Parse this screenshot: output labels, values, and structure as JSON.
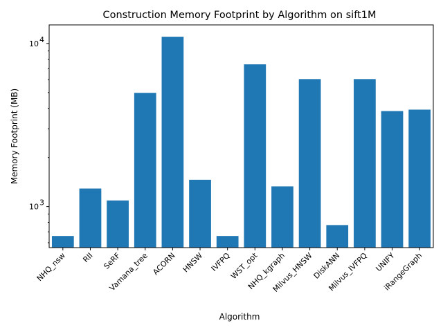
{
  "chart_data": {
    "type": "bar",
    "title": "Construction Memory Footprint by Algorithm on sift1M",
    "xlabel": "Algorithm",
    "ylabel": "Memory Footprint (MB)",
    "yscale": "log",
    "ylim": [
      560,
      13000
    ],
    "grid": false,
    "legend": "none",
    "bar_color": "#1f77b4",
    "y_ticks": [
      {
        "value": 1000,
        "label": "10",
        "exp": "3"
      },
      {
        "value": 10000,
        "label": "10",
        "exp": "4"
      }
    ],
    "categories": [
      "NHQ_nsw",
      "RII",
      "SeRF",
      "Vamana_tree",
      "ACORN",
      "HNSW",
      "IVFPQ",
      "WST_opt",
      "NHQ_kgraph",
      "Milvus_HNSW",
      "DiskANN",
      "Milvus_IVFPQ",
      "UNIFY",
      "iRangeGraph"
    ],
    "values": [
      660,
      1290,
      1090,
      4980,
      11000,
      1460,
      660,
      7450,
      1330,
      6050,
      770,
      6050,
      3850,
      3930
    ]
  }
}
